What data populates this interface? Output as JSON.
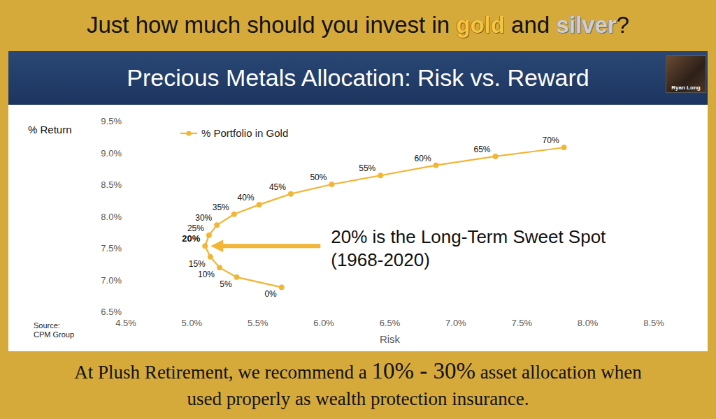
{
  "header": {
    "title": [
      {
        "text": "Just how much should you invest in ",
        "style": "plain"
      },
      {
        "text": "gold",
        "style": "gold"
      },
      {
        "text": " and ",
        "style": "plain"
      },
      {
        "text": "silver",
        "style": "silver"
      },
      {
        "text": "?",
        "style": "plain"
      }
    ]
  },
  "banner": {
    "title": "Precious Metals Allocation: Risk vs. Reward",
    "presenter": "Ryan Long"
  },
  "chart_data": {
    "type": "line",
    "x_label": "Risk",
    "y_label": "% Return",
    "x": [
      5.68,
      5.34,
      5.21,
      5.14,
      5.1,
      5.13,
      5.19,
      5.32,
      5.51,
      5.75,
      6.06,
      6.43,
      6.85,
      7.3,
      7.82
    ],
    "series": [
      {
        "name": "% Portfolio in Gold",
        "color": "#f2b534",
        "marker": "circle",
        "values": [
          6.88,
          7.04,
          7.19,
          7.36,
          7.53,
          7.7,
          7.86,
          8.03,
          8.18,
          8.35,
          8.5,
          8.64,
          8.8,
          8.94,
          9.08
        ],
        "point_labels": [
          "0%",
          "5%",
          "10%",
          "15%",
          "20%",
          "25%",
          "30%",
          "35%",
          "40%",
          "45%",
          "50%",
          "55%",
          "60%",
          "65%",
          "70%"
        ]
      }
    ],
    "xlim": [
      4.5,
      8.5
    ],
    "ylim": [
      6.5,
      9.5
    ],
    "xticks": [
      {
        "value": 4.5,
        "label": "4.5%"
      },
      {
        "value": 5.0,
        "label": "5.0%"
      },
      {
        "value": 5.5,
        "label": "5.5%"
      },
      {
        "value": 6.0,
        "label": "6.0%"
      },
      {
        "value": 6.5,
        "label": "6.5%"
      },
      {
        "value": 7.0,
        "label": "7.0%"
      },
      {
        "value": 7.5,
        "label": "7.5%"
      },
      {
        "value": 8.0,
        "label": "8.0%"
      },
      {
        "value": 8.5,
        "label": "8.5%"
      }
    ],
    "yticks": [
      {
        "value": 6.5,
        "label": "6.5%"
      },
      {
        "value": 7.0,
        "label": "7.0%"
      },
      {
        "value": 7.5,
        "label": "7.5%"
      },
      {
        "value": 8.0,
        "label": "8.0%"
      },
      {
        "value": 8.5,
        "label": "8.5%"
      },
      {
        "value": 9.0,
        "label": "9.0%"
      },
      {
        "value": 9.5,
        "label": "9.5%"
      }
    ],
    "grid": false,
    "legend": "top-left",
    "annotation": {
      "lines": [
        "20% is the Long-Term Sweet Spot",
        "(1968-2020)"
      ]
    },
    "source": [
      "Source:",
      "CPM Group"
    ]
  },
  "footer": {
    "lines": [
      [
        {
          "text": "At Plush Retirement, we recommend a ",
          "emphasis": false
        },
        {
          "text": "10% - 30%",
          "emphasis": true
        },
        {
          "text": " asset allocation when",
          "emphasis": false
        }
      ],
      [
        {
          "text": "used properly as wealth protection insurance.",
          "emphasis": false
        }
      ]
    ]
  }
}
